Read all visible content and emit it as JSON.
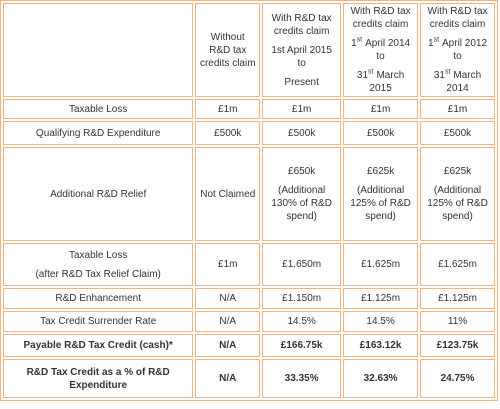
{
  "header": {
    "columns": [
      {
        "title": "Without R&D tax credits claim"
      },
      {
        "title": "With R&D tax credits claim",
        "from": {
          "text": "1st April 2015 to"
        },
        "to": {
          "text": "Present"
        }
      },
      {
        "title": "With R&D tax credits claim",
        "from": {
          "day": "1",
          "suffix": "st",
          "rest": "April 2014 to"
        },
        "to": {
          "day": "31",
          "suffix": "st",
          "rest": "March 2015"
        }
      },
      {
        "title": "With R&D tax credits claim",
        "from": {
          "day": "1",
          "suffix": "st",
          "rest": "April 2012 to"
        },
        "to": {
          "day": "31",
          "suffix": "st",
          "rest": "March 2014"
        }
      }
    ]
  },
  "rows": [
    {
      "label": [
        "Taxable Loss"
      ],
      "cells": [
        [
          "£1m"
        ],
        [
          "£1m"
        ],
        [
          "£1m"
        ],
        [
          "£1m"
        ]
      ]
    },
    {
      "label": [
        "Qualifying R&D Expenditure"
      ],
      "cells": [
        [
          "£500k"
        ],
        [
          "£500k"
        ],
        [
          "£500k"
        ],
        [
          "£500k"
        ]
      ]
    },
    {
      "label": [
        "Additional  R&D Relief"
      ],
      "cells": [
        [
          "Not Claimed"
        ],
        [
          "£650k",
          "(Additional 130% of R&D spend)"
        ],
        [
          "£625k",
          "(Additional 125% of R&D spend)"
        ],
        [
          "£625k",
          "(Additional 125% of R&D spend)"
        ]
      ]
    },
    {
      "label": [
        "Taxable Loss",
        "(after R&D Tax Relief Claim)"
      ],
      "cells": [
        [
          "£1m"
        ],
        [
          "£1.650m"
        ],
        [
          "£1.625m"
        ],
        [
          "£1.625m"
        ]
      ]
    },
    {
      "label": [
        "R&D Enhancement"
      ],
      "cells": [
        [
          "N/A"
        ],
        [
          "£1.150m"
        ],
        [
          "£1.125m"
        ],
        [
          "£1.125m"
        ]
      ]
    },
    {
      "label": [
        "Tax Credit Surrender Rate"
      ],
      "cells": [
        [
          "N/A"
        ],
        [
          "14.5%"
        ],
        [
          "14.5%"
        ],
        [
          "11%"
        ]
      ]
    },
    {
      "label": [
        "Payable R&D Tax Credit (cash)*"
      ],
      "bold": true,
      "cells": [
        [
          "N/A"
        ],
        [
          "£166.75k"
        ],
        [
          "£163.12k"
        ],
        [
          "£123.75k"
        ]
      ]
    },
    {
      "label": [
        "R&D Tax Credit as a % of R&D Expenditure"
      ],
      "bold": true,
      "cells": [
        [
          "N/A"
        ],
        [
          "33.35%"
        ],
        [
          "32.63%"
        ],
        [
          "24.75%"
        ]
      ]
    }
  ]
}
